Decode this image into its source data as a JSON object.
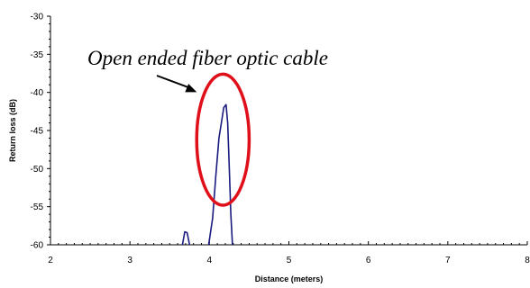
{
  "chart_data": {
    "type": "line",
    "title": "",
    "xlabel": "Distance (meters)",
    "ylabel": "Return loss (dB)",
    "xlim": [
      2,
      8
    ],
    "ylim": [
      -60,
      -30
    ],
    "xticks": [
      "2",
      "3",
      "4",
      "5",
      "6",
      "7",
      "8"
    ],
    "yticks": [
      "-30",
      "-35",
      "-40",
      "-45",
      "-50",
      "-55",
      "-60"
    ],
    "grid": false,
    "series": [
      {
        "color": "#1a1a80",
        "segments": [
          [
            [
              3.66,
              -60
            ],
            [
              3.69,
              -58.3
            ],
            [
              3.72,
              -58.4
            ],
            [
              3.75,
              -60
            ]
          ],
          [
            [
              3.99,
              -60
            ],
            [
              4.04,
              -56.5
            ],
            [
              4.08,
              -51
            ],
            [
              4.12,
              -46
            ],
            [
              4.15,
              -44
            ],
            [
              4.18,
              -42
            ],
            [
              4.21,
              -41.6
            ],
            [
              4.23,
              -44
            ],
            [
              4.25,
              -50
            ],
            [
              4.27,
              -56
            ],
            [
              4.29,
              -60
            ]
          ]
        ]
      }
    ],
    "annotations": [
      {
        "text": "Open ended fiber optic cable",
        "arrow_to": [
          4.0,
          -40.2
        ],
        "ellipse": {
          "cx": 4.17,
          "cy": -46.2,
          "rx": 0.33,
          "ry": 8.6,
          "color": "#e0101a"
        }
      }
    ]
  }
}
